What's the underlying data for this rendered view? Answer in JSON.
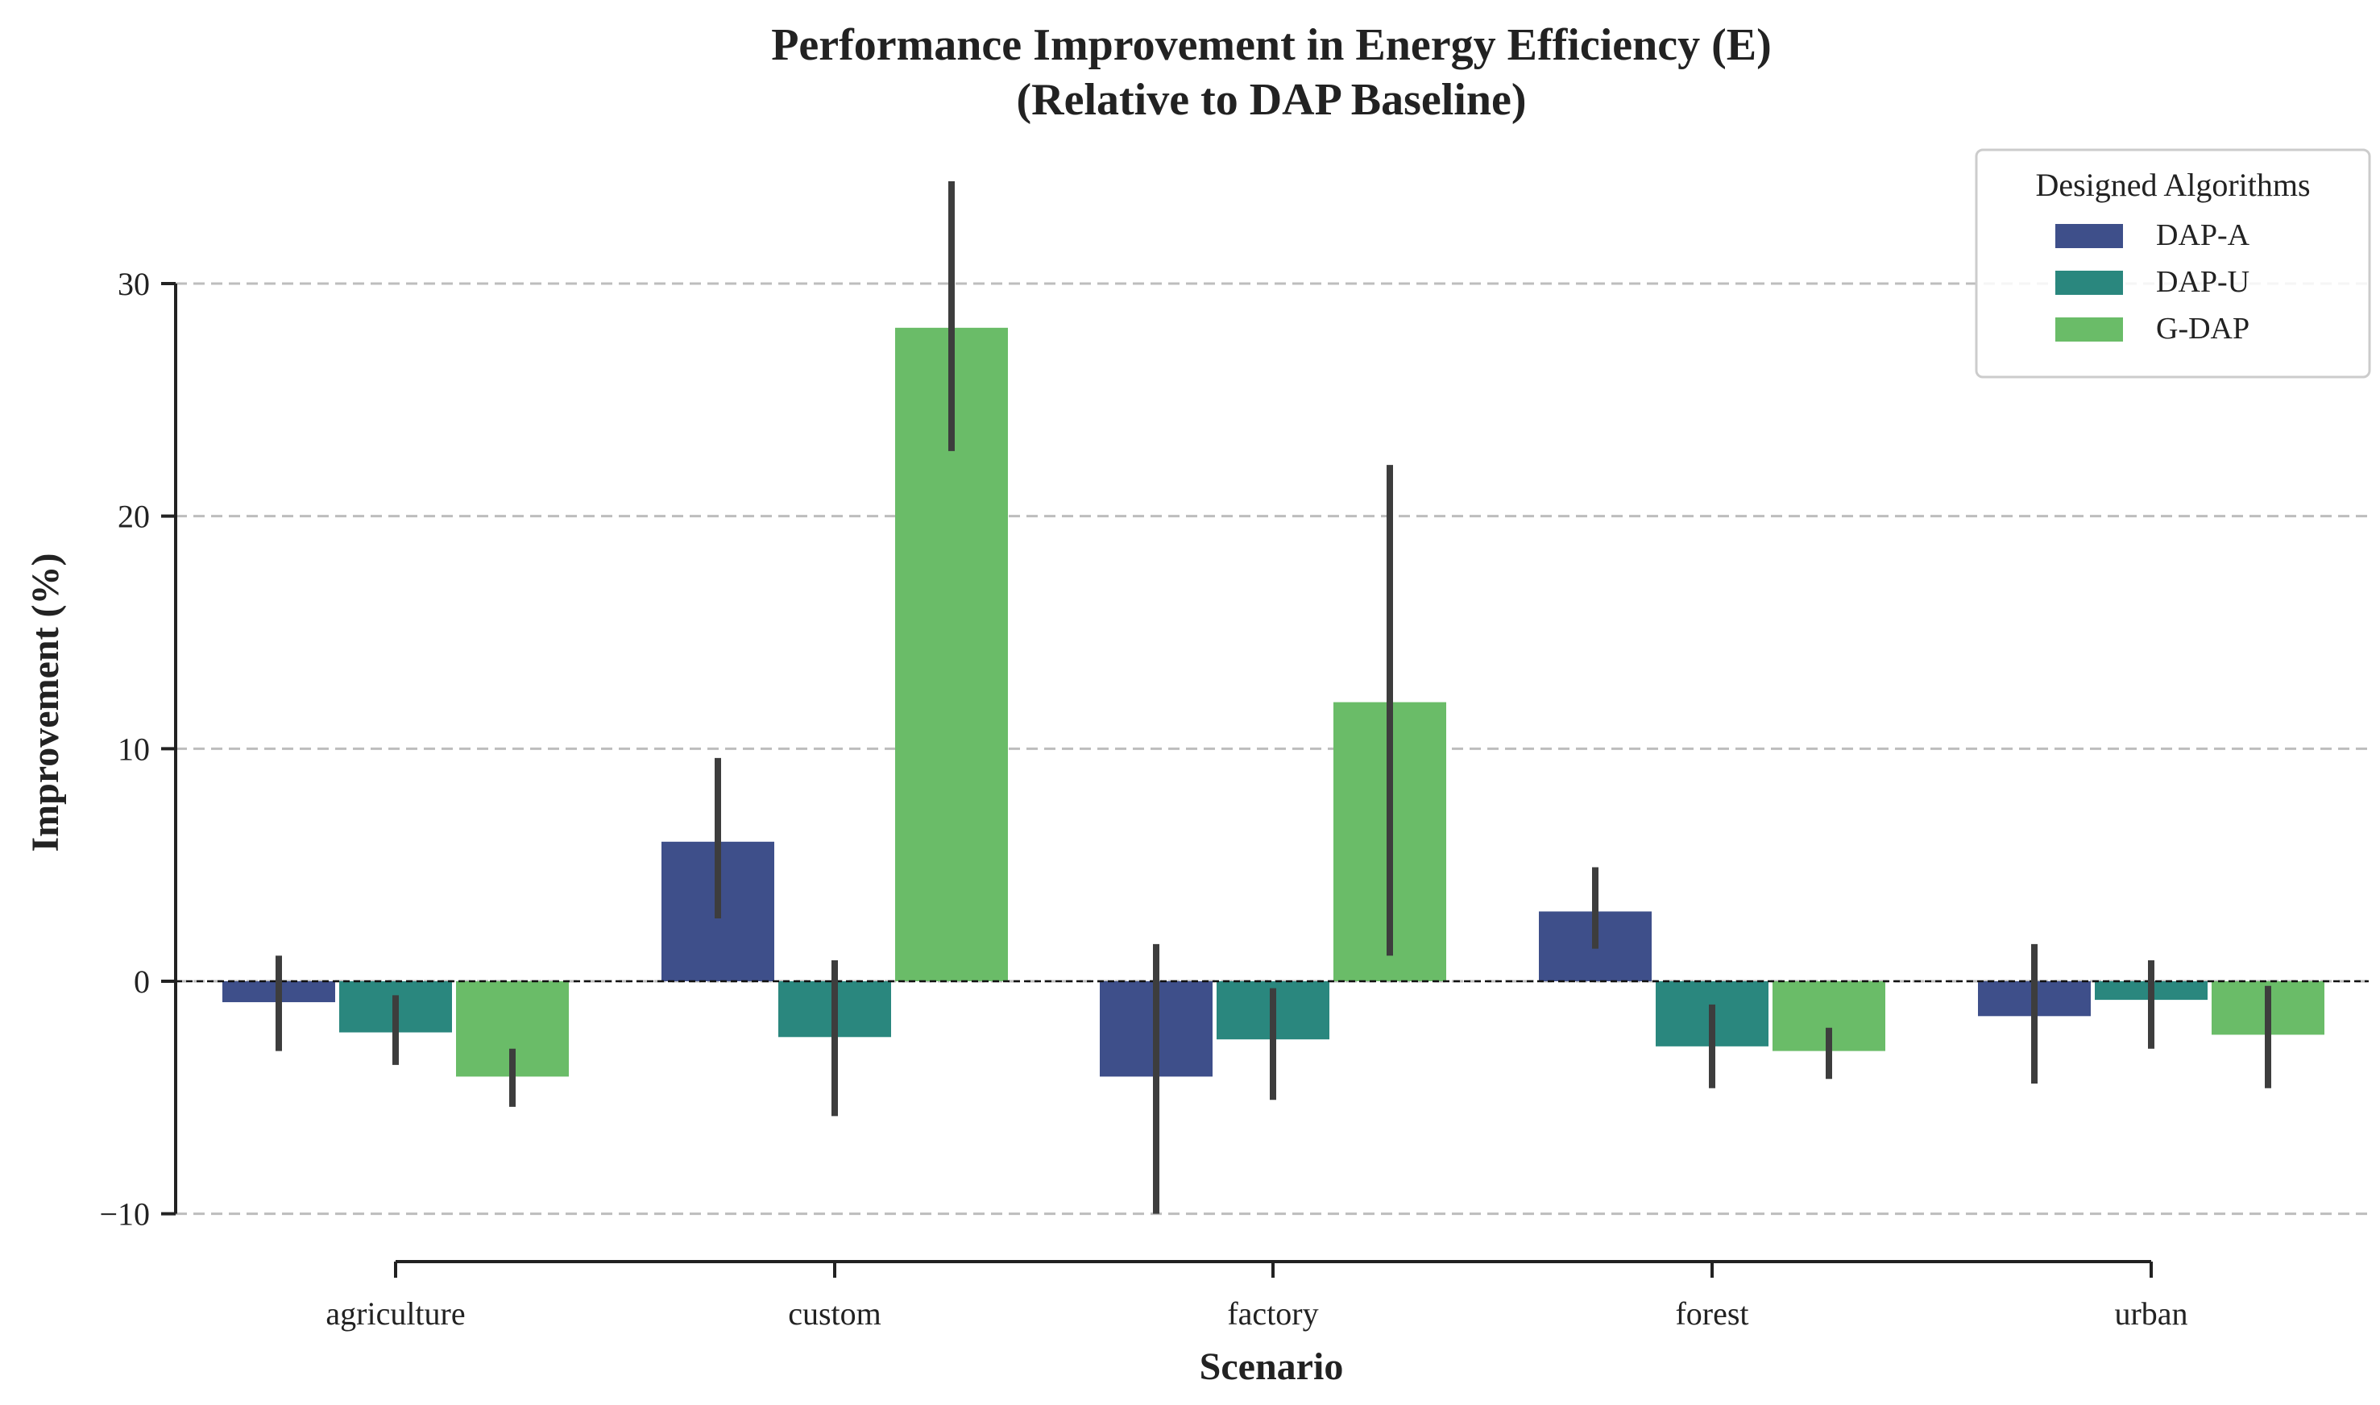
{
  "chart_data": {
    "type": "bar",
    "title_line1": "Performance Improvement in Energy Efficiency (E)",
    "title_line2": "(Relative to DAP Baseline)",
    "xlabel": "Scenario",
    "ylabel": "Improvement (%)",
    "categories": [
      "agriculture",
      "custom",
      "factory",
      "forest",
      "urban"
    ],
    "ylim": [
      -10.5,
      34
    ],
    "yticks": [
      -10,
      0,
      10,
      20,
      30
    ],
    "grid": "horizontal dashed",
    "legend": {
      "title": "Designed Algorithms",
      "placement": "top-right"
    },
    "series": [
      {
        "name": "DAP-A",
        "color": "#3e4f8a",
        "values": [
          -0.9,
          6.0,
          -4.1,
          3.0,
          -1.5
        ],
        "err_low": [
          -3.0,
          2.7,
          -10.0,
          1.4,
          -4.4
        ],
        "err_high": [
          1.1,
          9.6,
          1.6,
          4.9,
          1.6
        ]
      },
      {
        "name": "DAP-U",
        "color": "#2a877e",
        "values": [
          -2.2,
          -2.4,
          -2.5,
          -2.8,
          -0.8
        ],
        "err_low": [
          -3.6,
          -5.8,
          -5.1,
          -4.6,
          -2.9
        ],
        "err_high": [
          -0.6,
          0.9,
          -0.3,
          -1.0,
          0.9
        ]
      },
      {
        "name": "G-DAP",
        "color": "#6abc68",
        "values": [
          -4.1,
          28.1,
          12.0,
          -3.0,
          -2.3
        ],
        "err_low": [
          -5.4,
          22.8,
          1.1,
          -4.2,
          -4.6
        ],
        "err_high": [
          -2.9,
          34.4,
          22.2,
          -2.0,
          -0.2
        ]
      }
    ]
  }
}
